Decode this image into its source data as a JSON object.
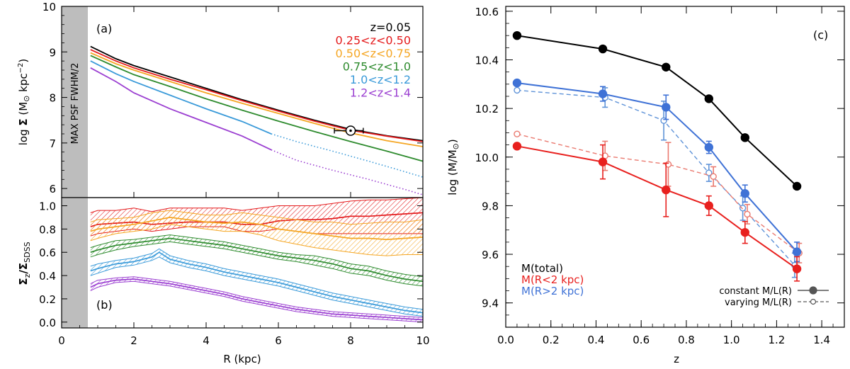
{
  "chart_data": [
    {
      "panel": "(a)",
      "type": "line",
      "xlabel": "",
      "ylabel": "log Σ (M⊙ kpc⁻²)",
      "xlim": [
        0,
        10
      ],
      "ylim": [
        5.8,
        10
      ],
      "yticks": [
        "6",
        "7",
        "8",
        "9",
        "10"
      ],
      "xticks": [],
      "shaded_label": "MAX PSF FWHM/2",
      "shaded_xmax": 0.75,
      "grid": false,
      "legend_placement": "top-right",
      "series": [
        {
          "name": "z=0.05",
          "color": "#000000",
          "x": [
            0.8,
            1.5,
            2,
            3,
            4,
            5,
            6,
            7,
            8,
            9,
            10
          ],
          "y": [
            9.12,
            8.85,
            8.7,
            8.45,
            8.2,
            7.95,
            7.72,
            7.5,
            7.3,
            7.16,
            7.05
          ],
          "dotted_from": null
        },
        {
          "name": "0.25<z<0.50",
          "color": "#e41a1c",
          "x": [
            0.8,
            1.5,
            2,
            3,
            4,
            5,
            6,
            7,
            8,
            9,
            10
          ],
          "y": [
            9.05,
            8.8,
            8.65,
            8.4,
            8.17,
            7.93,
            7.7,
            7.48,
            7.28,
            7.15,
            7.03
          ],
          "dotted_from": null
        },
        {
          "name": "0.50<z<0.75",
          "color": "#f5a623",
          "x": [
            0.8,
            1.5,
            2,
            3,
            4,
            5,
            6,
            7,
            8,
            9,
            10
          ],
          "y": [
            8.98,
            8.74,
            8.6,
            8.35,
            8.1,
            7.87,
            7.65,
            7.43,
            7.22,
            7.05,
            6.92
          ],
          "dotted_from": null
        },
        {
          "name": "0.75<z<1.0",
          "color": "#2e8b2e",
          "x": [
            0.8,
            1.5,
            2,
            3,
            4,
            5,
            6,
            7,
            8,
            9,
            10
          ],
          "y": [
            8.92,
            8.67,
            8.5,
            8.24,
            7.97,
            7.72,
            7.48,
            7.25,
            7.03,
            6.82,
            6.6
          ],
          "dotted_from": null
        },
        {
          "name": "1.0<z<1.2",
          "color": "#3a9ad9",
          "x": [
            0.8,
            1.5,
            2,
            3,
            4,
            5,
            5.8,
            6.5,
            7.5,
            8.5,
            9.5,
            10
          ],
          "y": [
            8.8,
            8.52,
            8.35,
            8.05,
            7.75,
            7.47,
            7.2,
            7.03,
            6.82,
            6.6,
            6.37,
            6.25
          ],
          "dotted_from": 6.3
        },
        {
          "name": "1.2<z<1.4",
          "color": "#9b3fd1",
          "x": [
            0.8,
            1.5,
            2,
            3,
            4,
            5,
            5.8,
            6.5,
            7.5,
            8.5,
            9.5,
            10
          ],
          "y": [
            8.65,
            8.35,
            8.1,
            7.75,
            7.45,
            7.15,
            6.85,
            6.62,
            6.4,
            6.2,
            5.98,
            5.86
          ],
          "dotted_from": 5.8
        }
      ],
      "legend": [
        "z=0.05",
        "0.25<z<0.50",
        "0.50<z<0.75",
        "0.75<z<1.0",
        "1.0<z<1.2",
        "1.2<z<1.4"
      ],
      "annotation": {
        "x": 8.0,
        "y": 7.27,
        "xerr": [
          7.55,
          8.35
        ],
        "symbol": "⊙"
      }
    },
    {
      "panel": "(b)",
      "type": "area",
      "xlabel": "R (kpc)",
      "ylabel": "Σz/ΣSDSS",
      "xlim": [
        0,
        10
      ],
      "ylim": [
        -0.05,
        1.07
      ],
      "xticks": [
        "0",
        "2",
        "4",
        "6",
        "8",
        "10"
      ],
      "yticks": [
        "0.0",
        "0.2",
        "0.4",
        "0.6",
        "0.8",
        "1.0"
      ],
      "shaded_xmax": 0.75,
      "grid": false,
      "series": [
        {
          "name": "0.25<z<0.50",
          "color": "#e41a1c",
          "x": [
            0.8,
            1,
            1.5,
            2,
            2.5,
            3,
            3.5,
            4,
            4.5,
            5,
            5.5,
            6,
            6.5,
            7,
            7.5,
            8,
            8.5,
            9,
            9.5,
            10
          ],
          "y": [
            0.82,
            0.84,
            0.85,
            0.86,
            0.84,
            0.85,
            0.86,
            0.86,
            0.86,
            0.84,
            0.84,
            0.87,
            0.88,
            0.88,
            0.89,
            0.91,
            0.91,
            0.92,
            0.93,
            0.94
          ],
          "lo": [
            0.74,
            0.76,
            0.78,
            0.8,
            0.78,
            0.8,
            0.82,
            0.82,
            0.82,
            0.78,
            0.78,
            0.8,
            0.78,
            0.76,
            0.76,
            0.76,
            0.76,
            0.76,
            0.76,
            0.76
          ],
          "hi": [
            0.94,
            0.96,
            0.96,
            0.98,
            0.95,
            0.98,
            0.98,
            0.98,
            0.98,
            0.96,
            0.98,
            1.0,
            1.0,
            1.0,
            1.02,
            1.04,
            1.05,
            1.05,
            1.06,
            1.07
          ]
        },
        {
          "name": "0.50<z<0.75",
          "color": "#f5a623",
          "x": [
            0.8,
            1,
            1.5,
            2,
            2.5,
            3,
            3.5,
            4,
            4.5,
            5,
            5.5,
            6,
            6.5,
            7,
            7.5,
            8,
            8.5,
            9,
            9.5,
            10
          ],
          "y": [
            0.78,
            0.8,
            0.82,
            0.84,
            0.87,
            0.9,
            0.88,
            0.86,
            0.85,
            0.86,
            0.84,
            0.8,
            0.78,
            0.76,
            0.74,
            0.72,
            0.72,
            0.71,
            0.72,
            0.73
          ],
          "lo": [
            0.7,
            0.72,
            0.76,
            0.78,
            0.8,
            0.84,
            0.82,
            0.8,
            0.78,
            0.78,
            0.75,
            0.7,
            0.67,
            0.64,
            0.62,
            0.6,
            0.58,
            0.57,
            0.58,
            0.58
          ],
          "hi": [
            0.86,
            0.88,
            0.89,
            0.9,
            0.94,
            0.96,
            0.94,
            0.92,
            0.92,
            0.94,
            0.92,
            0.9,
            0.88,
            0.86,
            0.86,
            0.84,
            0.85,
            0.86,
            0.86,
            0.88
          ]
        },
        {
          "name": "0.75<z<1.0",
          "color": "#2e8b2e",
          "x": [
            0.8,
            1,
            1.5,
            2,
            2.5,
            3,
            3.5,
            4,
            4.5,
            5,
            5.5,
            6,
            6.5,
            7,
            7.5,
            8,
            8.5,
            9,
            9.5,
            10
          ],
          "y": [
            0.6,
            0.62,
            0.66,
            0.68,
            0.7,
            0.72,
            0.7,
            0.68,
            0.66,
            0.63,
            0.6,
            0.57,
            0.55,
            0.53,
            0.5,
            0.46,
            0.44,
            0.4,
            0.37,
            0.35
          ],
          "lo": [
            0.56,
            0.58,
            0.62,
            0.65,
            0.67,
            0.69,
            0.67,
            0.65,
            0.63,
            0.6,
            0.57,
            0.54,
            0.52,
            0.49,
            0.46,
            0.42,
            0.4,
            0.36,
            0.33,
            0.31
          ],
          "hi": [
            0.64,
            0.66,
            0.7,
            0.71,
            0.73,
            0.75,
            0.73,
            0.71,
            0.69,
            0.66,
            0.63,
            0.6,
            0.58,
            0.57,
            0.54,
            0.5,
            0.48,
            0.44,
            0.41,
            0.39
          ]
        },
        {
          "name": "1.0<z<1.2",
          "color": "#3a9ad9",
          "x": [
            0.8,
            1,
            1.5,
            2,
            2.5,
            2.7,
            3,
            3.5,
            4,
            4.5,
            5,
            5.5,
            6,
            6.5,
            7,
            7.5,
            8,
            8.5,
            9,
            9.5,
            10
          ],
          "y": [
            0.44,
            0.46,
            0.5,
            0.52,
            0.56,
            0.6,
            0.54,
            0.5,
            0.47,
            0.43,
            0.4,
            0.37,
            0.34,
            0.3,
            0.26,
            0.22,
            0.19,
            0.16,
            0.13,
            0.1,
            0.08
          ],
          "lo": [
            0.4,
            0.42,
            0.47,
            0.49,
            0.53,
            0.56,
            0.51,
            0.47,
            0.44,
            0.4,
            0.37,
            0.34,
            0.31,
            0.27,
            0.23,
            0.19,
            0.16,
            0.13,
            0.1,
            0.07,
            0.05
          ],
          "hi": [
            0.48,
            0.5,
            0.53,
            0.55,
            0.59,
            0.63,
            0.57,
            0.53,
            0.5,
            0.46,
            0.43,
            0.4,
            0.37,
            0.33,
            0.29,
            0.25,
            0.22,
            0.19,
            0.16,
            0.13,
            0.11
          ]
        },
        {
          "name": "1.2<z<1.4",
          "color": "#9b3fd1",
          "x": [
            0.8,
            1,
            1.5,
            2,
            2.5,
            3,
            3.5,
            4,
            4.5,
            5,
            5.5,
            6,
            6.5,
            7,
            7.5,
            8,
            8.5,
            9,
            9.5,
            10
          ],
          "y": [
            0.3,
            0.33,
            0.36,
            0.37,
            0.35,
            0.33,
            0.3,
            0.27,
            0.24,
            0.2,
            0.17,
            0.14,
            0.11,
            0.09,
            0.07,
            0.06,
            0.05,
            0.04,
            0.03,
            0.02
          ],
          "lo": [
            0.27,
            0.3,
            0.34,
            0.35,
            0.33,
            0.31,
            0.28,
            0.25,
            0.22,
            0.18,
            0.15,
            0.12,
            0.09,
            0.07,
            0.05,
            0.04,
            0.03,
            0.02,
            0.01,
            0.0
          ],
          "hi": [
            0.33,
            0.36,
            0.38,
            0.39,
            0.37,
            0.35,
            0.32,
            0.29,
            0.26,
            0.22,
            0.19,
            0.16,
            0.13,
            0.11,
            0.09,
            0.08,
            0.07,
            0.06,
            0.05,
            0.04
          ]
        }
      ]
    },
    {
      "panel": "(c)",
      "type": "line",
      "xlabel": "z",
      "ylabel": "log (M/M⊙)",
      "xlim": [
        0,
        1.5
      ],
      "ylim": [
        9.3,
        10.62
      ],
      "xticks": [
        "0.0",
        "0.2",
        "0.4",
        "0.6",
        "0.8",
        "1.0",
        "1.2",
        "1.4"
      ],
      "yticks": [
        "9.4",
        "9.6",
        "9.8",
        "10.0",
        "10.2",
        "10.4",
        "10.6"
      ],
      "grid": false,
      "legend_placement": "bottom-left",
      "series": [
        {
          "name": "M(total)",
          "color": "#000000",
          "style": "solid",
          "marker": "filled",
          "x": [
            0.05,
            0.43,
            0.71,
            0.9,
            1.06,
            1.29
          ],
          "y": [
            10.5,
            10.445,
            10.37,
            10.24,
            10.08,
            9.88
          ],
          "err": [
            0,
            0,
            0,
            0,
            0,
            0
          ]
        },
        {
          "name": "M(R>2 kpc)",
          "color": "#3f72d6",
          "style": "solid",
          "marker": "filled",
          "x": [
            0.05,
            0.43,
            0.71,
            0.9,
            1.06,
            1.29
          ],
          "y": [
            10.305,
            10.26,
            10.205,
            10.04,
            9.85,
            9.61
          ],
          "err": [
            0,
            0.03,
            0.05,
            0.025,
            0.035,
            0.04
          ]
        },
        {
          "name": "M(R<2 kpc)",
          "color": "#e8201e",
          "style": "solid",
          "marker": "filled",
          "x": [
            0.05,
            0.43,
            0.71,
            0.9,
            1.06,
            1.29
          ],
          "y": [
            10.045,
            9.98,
            9.865,
            9.8,
            9.69,
            9.54
          ],
          "err": [
            0,
            0.07,
            0.11,
            0.04,
            0.045,
            0.05
          ]
        },
        {
          "name": "M(R>2 kpc) varying",
          "color": "#5f93d8",
          "style": "dashed",
          "marker": "open",
          "x": [
            0.05,
            0.44,
            0.7,
            0.9,
            1.05,
            1.28
          ],
          "y": [
            10.275,
            10.245,
            10.15,
            9.935,
            9.79,
            9.555
          ],
          "err": [
            0,
            0.04,
            0.08,
            0.035,
            0.05,
            0.05
          ]
        },
        {
          "name": "M(R<2 kpc) varying",
          "color": "#ea7a70",
          "style": "dashed",
          "marker": "open",
          "x": [
            0.05,
            0.44,
            0.72,
            0.92,
            1.07,
            1.3
          ],
          "y": [
            10.095,
            10.005,
            9.97,
            9.92,
            9.765,
            9.605
          ],
          "err": [
            0,
            0.06,
            0.09,
            0.04,
            0.04,
            0.04
          ]
        }
      ],
      "legend": [
        "M(total)",
        "M(R<2 kpc)",
        "M(R>2 kpc)"
      ],
      "style_legend": [
        "constant M/L(R)",
        "varying M/L(R)"
      ]
    }
  ],
  "labels": {
    "panel_a": "(a)",
    "panel_b": "(b)",
    "panel_c": "(c)",
    "psf_label": "MAX PSF FWHM/2",
    "ylabel_a_prefix": "log ",
    "ylabel_a_sigma": "Σ",
    "ylabel_a_unit": " (M",
    "ylabel_a_kpc": " kpc",
    "ylabel_a_exp": "−2",
    "ylabel_b_sigma1": "Σ",
    "ylabel_b_sub1": "z",
    "ylabel_b_slash": "/Σ",
    "ylabel_b_sub2": "SDSS",
    "xlabel_ab": "R (kpc)",
    "ylabel_c": "log (M/M",
    "ylabel_c_close": ")",
    "xlabel_c": "z",
    "sun": "⊙",
    "legend_a": [
      "z=0.05",
      "0.25<z<0.50",
      "0.50<z<0.75",
      "0.75<z<1.0",
      "1.0<z<1.2",
      "1.2<z<1.4"
    ],
    "legend_c": [
      "M(total)",
      "M(R<2 kpc)",
      "M(R>2 kpc)"
    ],
    "style_legend": [
      "constant M/L(R)",
      "varying M/L(R)"
    ]
  },
  "colors": {
    "black": "#000000",
    "red": "#e41a1c",
    "orange": "#f5a623",
    "green": "#2e8b2e",
    "blue": "#3a9ad9",
    "purple": "#9b3fd1",
    "shade": "#bdbdbd"
  }
}
